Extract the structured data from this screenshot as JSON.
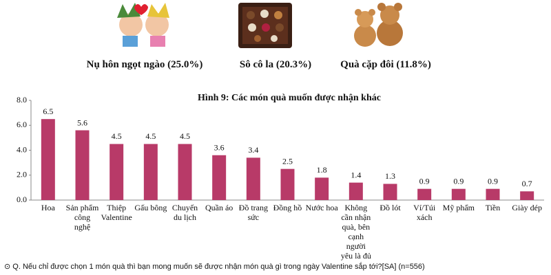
{
  "gifts": [
    {
      "caption": "Nụ hôn ngọt ngào (25.0%)"
    },
    {
      "caption": "Sô cô la (20.3%)"
    },
    {
      "caption": "Quà cặp đôi (11.8%)"
    }
  ],
  "chart_data": {
    "type": "bar",
    "title": "Hình  9: Các món quà muốn được nhận khác",
    "categories": [
      "Hoa",
      "Sản phẩm công nghệ",
      "Thiệp Valentine",
      "Gấu bông",
      "Chuyến du lịch",
      "Quần áo",
      "Đồ trang sức",
      "Đồng hồ",
      "Nước hoa",
      "Không cần nhận quà, bên cạnh người yêu là đủ",
      "Đồ lót",
      "Ví/Túi xách",
      "Mỹ phẩm",
      "Tiền",
      "Giày dép"
    ],
    "values": [
      6.5,
      5.6,
      4.5,
      4.5,
      4.5,
      3.6,
      3.4,
      2.5,
      1.8,
      1.4,
      1.3,
      0.9,
      0.9,
      0.9,
      0.7
    ],
    "color": "#b83a68",
    "ylim": [
      0,
      8
    ],
    "yticks": [
      {
        "value": 0,
        "label": "0.0"
      },
      {
        "value": 2,
        "label": "2.0"
      },
      {
        "value": 4,
        "label": "4.0"
      },
      {
        "value": 6,
        "label": "6.0"
      },
      {
        "value": 8,
        "label": "8.0"
      }
    ],
    "grid": false
  },
  "footnote": "⊙ Q. Nếu chỉ được chọn 1 món quà thì bạn mong muốn sẽ được nhận món quà gì trong ngày Valentine sắp tới?[SA] (n=556)"
}
